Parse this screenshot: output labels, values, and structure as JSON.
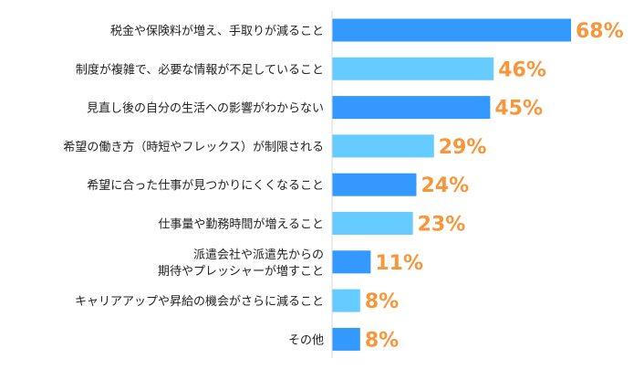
{
  "chart_data": {
    "type": "bar",
    "orientation": "horizontal",
    "categories": [
      [
        "税金や保険料が増え、手取りが減ること"
      ],
      [
        "制度が複雑で、必要な情報が不足していること"
      ],
      [
        "見直し後の自分の生活への影響がわからない"
      ],
      [
        "希望の働き方（時短やフレックス）が制限される"
      ],
      [
        "希望に合った仕事が見つかりにくくなること"
      ],
      [
        "仕事量や勤務時間が増えること"
      ],
      [
        "派遣会社や派遣先からの",
        "期待やプレッシャーが増すこと"
      ],
      [
        "キャリアアップや昇給の機会がさらに減ること"
      ],
      [
        "その他"
      ]
    ],
    "values": [
      68,
      46,
      45,
      29,
      24,
      23,
      11,
      8,
      8
    ],
    "data_labels": [
      "68%",
      "46%",
      "45%",
      "29%",
      "24%",
      "23%",
      "11%",
      "8%",
      "8%"
    ],
    "xlim": [
      0,
      100
    ],
    "grid": false,
    "bar_colors": [
      "#3399ff",
      "#66ccff",
      "#3399ff",
      "#66ccff",
      "#3399ff",
      "#66ccff",
      "#3399ff",
      "#66ccff",
      "#3399ff"
    ],
    "label_color": "#f7963a",
    "axis_color": "#d9d9d9"
  }
}
